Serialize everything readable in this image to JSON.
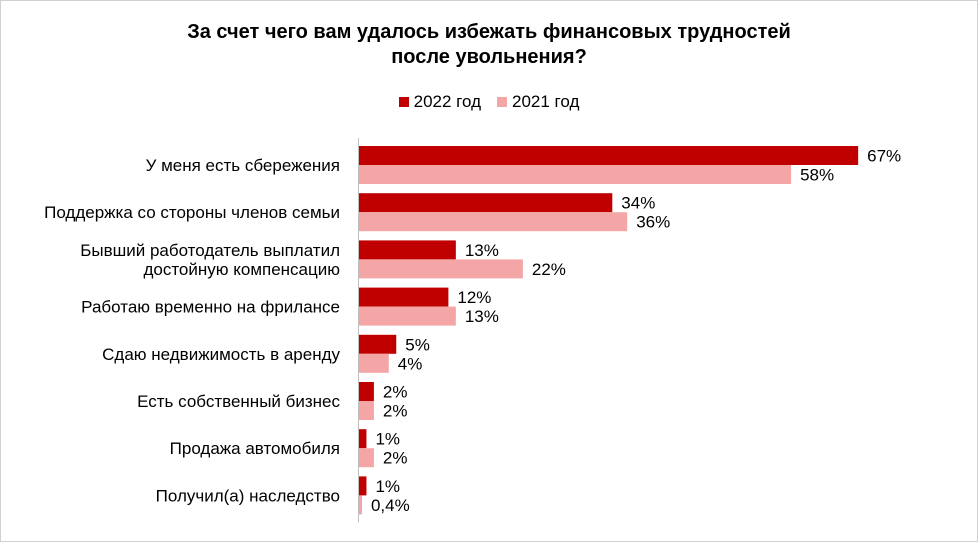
{
  "chart_data": {
    "type": "bar",
    "orientation": "horizontal",
    "title_lines": [
      "За счет чего вам удалось избежать финансовых трудностей",
      "после увольнения?"
    ],
    "categories": [
      [
        "У меня есть сбережения"
      ],
      [
        "Поддержка со стороны членов семьи"
      ],
      [
        "Бывший  работодатель выплатил",
        "достойную компенсацию"
      ],
      [
        "Работаю временно на фрилансе"
      ],
      [
        "Сдаю недвижимость в аренду"
      ],
      [
        "Есть собственный бизнес"
      ],
      [
        "Продажа автомобиля"
      ],
      [
        "Получил(а)  наследство"
      ]
    ],
    "series": [
      {
        "name": "2022 год",
        "color": "#c00000",
        "values": [
          67,
          34,
          13,
          12,
          5,
          2,
          1,
          1
        ],
        "labels": [
          "67%",
          "34%",
          "13%",
          "12%",
          "5%",
          "2%",
          "1%",
          "1%"
        ]
      },
      {
        "name": "2021 год",
        "color": "#f4a6a6",
        "values": [
          58,
          36,
          22,
          13,
          4,
          2,
          2,
          0.4
        ],
        "labels": [
          "58%",
          "36%",
          "22%",
          "13%",
          "4%",
          "2%",
          "2%",
          "0,4%"
        ]
      }
    ],
    "legend_position": "top",
    "grid": false
  }
}
